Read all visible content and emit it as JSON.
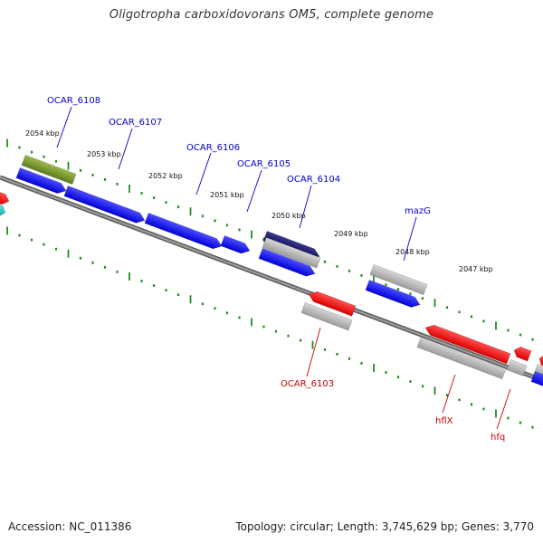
{
  "title": "Oligotropha carboxidovorans OM5, complete genome",
  "footer": {
    "accession": "Accession: NC_011386",
    "stats": "Topology: circular; Length: 3,745,629 bp; Genes: 3,770"
  },
  "colors": {
    "forward_label": "#0000cc",
    "reverse_label": "#cc0000",
    "ticks": "#228b22",
    "backbone": "#777777",
    "cds_blue": "#0000ee",
    "cds_red": "#ee0000",
    "cds_gray": "#a9a9a9",
    "cds_olive": "#6b8e23",
    "cds_navy": "#000066",
    "cds_cyan": "#00bcbc"
  },
  "kbp_labels": [
    "2054 kbp",
    "2053 kbp",
    "2052 kbp",
    "2051 kbp",
    "2050 kbp",
    "2049 kbp",
    "2048 kbp",
    "2047 kbp"
  ],
  "gene_labels": {
    "forward": [
      "OCAR_6108",
      "OCAR_6107",
      "OCAR_6106",
      "OCAR_6105",
      "OCAR_6104",
      "mazG"
    ],
    "reverse": [
      "OCAR_6103",
      "hflX",
      "hfq"
    ]
  }
}
